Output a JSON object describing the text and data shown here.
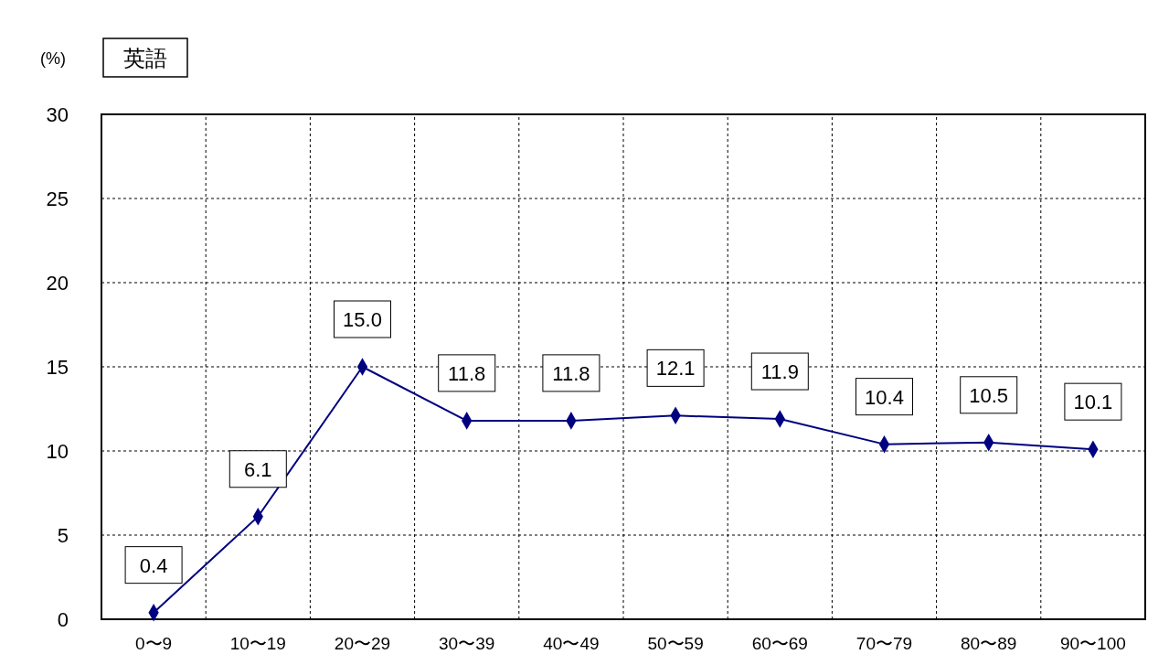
{
  "chart_data": {
    "type": "line",
    "title": "英語",
    "ylabel": "(%)",
    "categories": [
      "0〜9",
      "10〜19",
      "20〜29",
      "30〜39",
      "40〜49",
      "50〜59",
      "60〜69",
      "70〜79",
      "80〜89",
      "90〜100"
    ],
    "series": [
      {
        "color": "#000080",
        "values": [
          0.4,
          6.1,
          15.0,
          11.8,
          11.8,
          12.1,
          11.9,
          10.4,
          10.5,
          10.1
        ],
        "value_labels": [
          "0.4",
          "6.1",
          "15.0",
          "11.8",
          "11.8",
          "12.1",
          "11.9",
          "10.4",
          "10.5",
          "10.1"
        ]
      }
    ],
    "ylim": [
      0,
      30
    ],
    "yticks": [
      0,
      5,
      10,
      15,
      20,
      25,
      30
    ],
    "grid": true,
    "marker": "diamond",
    "line_style": "solid"
  }
}
